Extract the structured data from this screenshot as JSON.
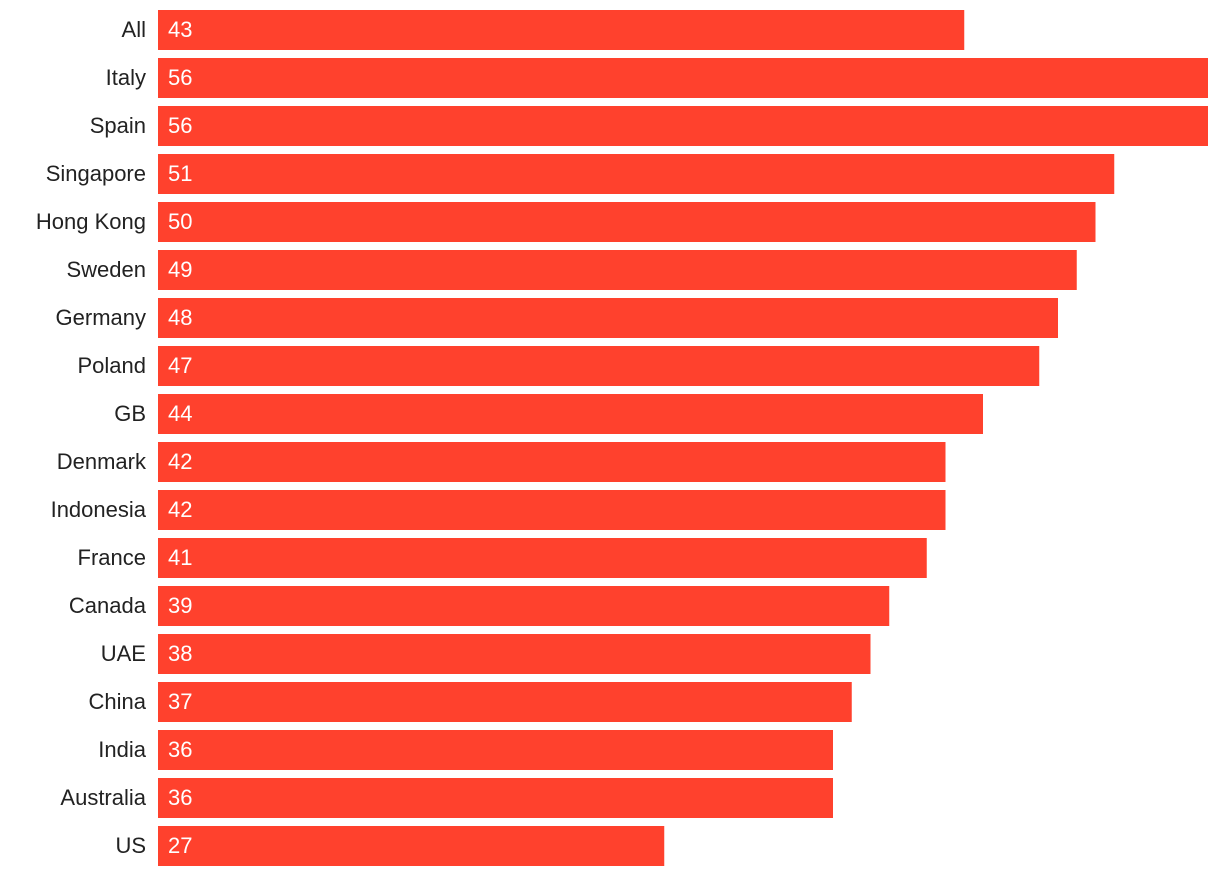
{
  "chart_data": {
    "type": "bar",
    "orientation": "horizontal",
    "data_labels": true,
    "categories": [
      "All",
      "Italy",
      "Spain",
      "Singapore",
      "Hong Kong",
      "Sweden",
      "Germany",
      "Poland",
      "GB",
      "Denmark",
      "Indonesia",
      "France",
      "Canada",
      "UAE",
      "China",
      "India",
      "Australia",
      "US"
    ],
    "values": [
      43,
      56,
      56,
      51,
      50,
      49,
      48,
      47,
      44,
      42,
      42,
      41,
      39,
      38,
      37,
      36,
      36,
      27
    ],
    "color": "#ff412d"
  }
}
